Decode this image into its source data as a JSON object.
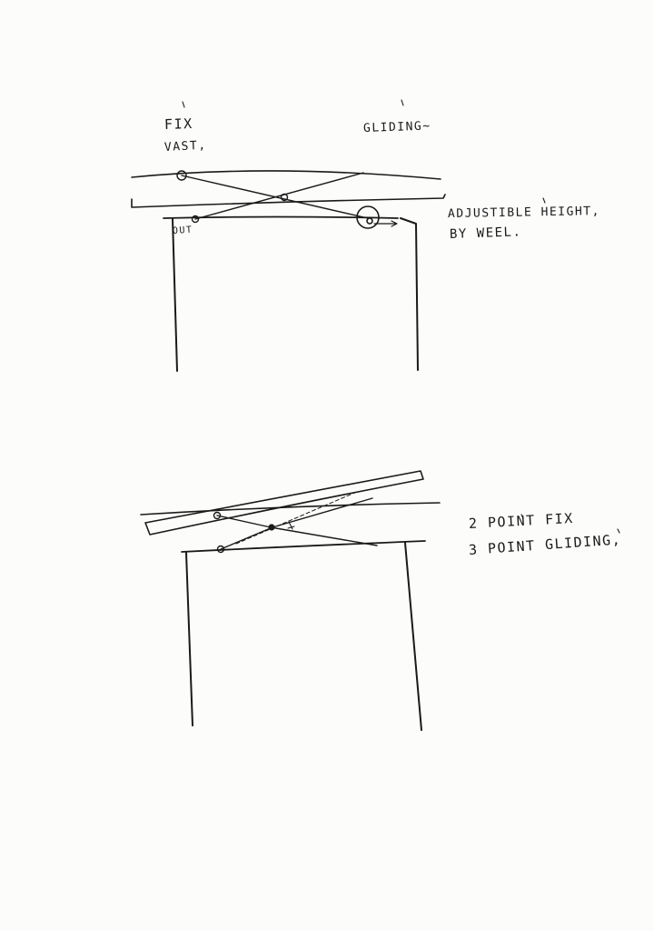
{
  "figure_top": {
    "label_fixed": "FIX",
    "label_fixed_sub": "VAST,",
    "label_gliding": "GLIDING~",
    "note_line1": "ADJUSTIBLE HEIGHT,",
    "note_line2": "BY WEEL.",
    "label_small": "OUT"
  },
  "figure_bottom": {
    "note_line1": "2 POINT FIX",
    "note_line2": "3 POINT GLIDING,"
  },
  "ink_color": "#1a1a1a",
  "paper_color": "#fcfcfb"
}
